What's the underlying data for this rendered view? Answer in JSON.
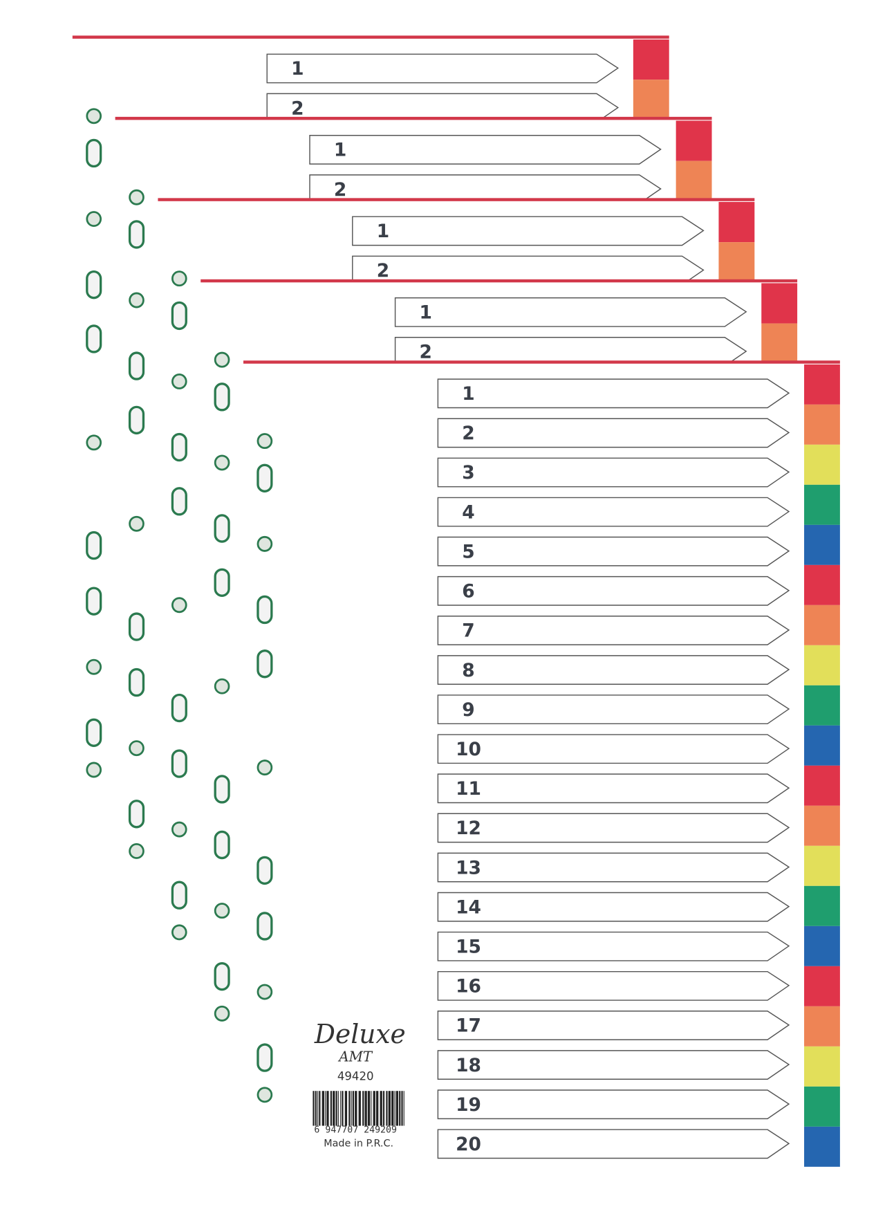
{
  "sheets": [
    {
      "labels": [
        "1",
        "2"
      ]
    },
    {
      "labels": [
        "1",
        "2"
      ]
    },
    {
      "labels": [
        "1",
        "2"
      ]
    },
    {
      "labels": [
        "1",
        "2"
      ]
    }
  ],
  "front": {
    "labels": [
      "1",
      "2",
      "3",
      "4",
      "5",
      "6",
      "7",
      "8",
      "9",
      "10",
      "11",
      "12",
      "13",
      "14",
      "15",
      "16",
      "17",
      "18",
      "19",
      "20"
    ]
  },
  "brand": {
    "name": "Deluxe",
    "sub": "AMT",
    "code": "49420",
    "barcode": "6 947707 249209",
    "origin": "Made in P.R.C."
  }
}
